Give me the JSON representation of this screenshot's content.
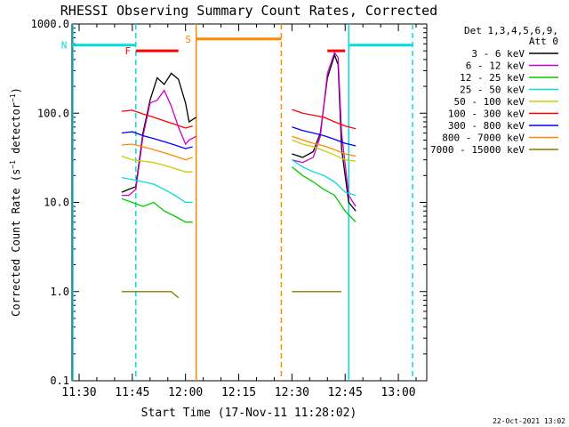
{
  "chart_data": {
    "type": "line",
    "title": "RHESSI Observing Summary Count Rates, Corrected",
    "xlabel": "Start Time (17-Nov-11 11:28:02)",
    "ylabel": "Corrected Count Rate (s⁻¹ detector⁻¹)",
    "ylabel_parts": [
      "Corrected Count Rate (s",
      "−1",
      " detector",
      "−1",
      ")"
    ],
    "y_scale": "log",
    "xlim": [
      "11:28",
      "13:08"
    ],
    "ylim": [
      0.1,
      1000
    ],
    "x_ticks": [
      "11:30",
      "11:45",
      "12:00",
      "12:15",
      "12:30",
      "12:45",
      "13:00"
    ],
    "y_ticks": [
      {
        "value": 0.1,
        "label": "0.1"
      },
      {
        "value": 1,
        "label": "1.0"
      },
      {
        "value": 10,
        "label": "10.0"
      },
      {
        "value": 100,
        "label": "100.0"
      },
      {
        "value": 1000,
        "label": "1000.0"
      }
    ],
    "legend_header": [
      "Det 1,3,4,5,6,9,",
      "Att 0"
    ],
    "legend_position": "right",
    "series": [
      {
        "name": "3 - 6 keV",
        "color": "#000000",
        "segments": [
          [
            [
              "11:42",
              13
            ],
            [
              "11:44",
              14
            ],
            [
              "11:46",
              15
            ],
            [
              "11:48",
              60
            ],
            [
              "11:50",
              140
            ],
            [
              "11:52",
              250
            ],
            [
              "11:54",
              210
            ],
            [
              "11:56",
              280
            ],
            [
              "11:58",
              240
            ],
            [
              "12:00",
              130
            ],
            [
              "12:01",
              80
            ],
            [
              "12:03",
              90
            ]
          ],
          [
            [
              "12:30",
              35
            ],
            [
              "12:33",
              32
            ],
            [
              "12:36",
              37
            ],
            [
              "12:38",
              60
            ],
            [
              "12:40",
              250
            ],
            [
              "12:42",
              450
            ],
            [
              "12:43",
              350
            ],
            [
              "12:44",
              40
            ],
            [
              "12:46",
              10
            ],
            [
              "12:48",
              8
            ]
          ]
        ]
      },
      {
        "name": "6 - 12 keV",
        "color": "#cc00cc",
        "segments": [
          [
            [
              "11:42",
              12
            ],
            [
              "11:44",
              12
            ],
            [
              "11:46",
              14
            ],
            [
              "11:48",
              55
            ],
            [
              "11:50",
              130
            ],
            [
              "11:52",
              140
            ],
            [
              "11:54",
              180
            ],
            [
              "11:56",
              120
            ],
            [
              "11:58",
              70
            ],
            [
              "12:00",
              45
            ],
            [
              "12:01",
              50
            ],
            [
              "12:03",
              55
            ]
          ],
          [
            [
              "12:30",
              30
            ],
            [
              "12:33",
              28
            ],
            [
              "12:36",
              32
            ],
            [
              "12:38",
              55
            ],
            [
              "12:40",
              280
            ],
            [
              "12:42",
              480
            ],
            [
              "12:43",
              420
            ],
            [
              "12:44",
              60
            ],
            [
              "12:46",
              12
            ],
            [
              "12:48",
              9
            ]
          ]
        ]
      },
      {
        "name": "12 - 25 keV",
        "color": "#00cc00",
        "segments": [
          [
            [
              "11:42",
              11
            ],
            [
              "11:45",
              10
            ],
            [
              "11:48",
              9
            ],
            [
              "11:51",
              10
            ],
            [
              "11:54",
              8
            ],
            [
              "11:57",
              7
            ],
            [
              "12:00",
              6
            ],
            [
              "12:02",
              6
            ]
          ],
          [
            [
              "12:30",
              25
            ],
            [
              "12:33",
              20
            ],
            [
              "12:36",
              17
            ],
            [
              "12:39",
              14
            ],
            [
              "12:42",
              12
            ],
            [
              "12:45",
              8
            ],
            [
              "12:48",
              6
            ]
          ]
        ]
      },
      {
        "name": "25 - 50 keV",
        "color": "#00dddd",
        "segments": [
          [
            [
              "11:42",
              19
            ],
            [
              "11:45",
              18
            ],
            [
              "11:48",
              17
            ],
            [
              "11:51",
              16
            ],
            [
              "11:54",
              14
            ],
            [
              "11:57",
              12
            ],
            [
              "12:00",
              10
            ],
            [
              "12:02",
              10
            ]
          ],
          [
            [
              "12:30",
              30
            ],
            [
              "12:33",
              25
            ],
            [
              "12:36",
              22
            ],
            [
              "12:39",
              20
            ],
            [
              "12:42",
              17
            ],
            [
              "12:45",
              13
            ],
            [
              "12:48",
              12
            ]
          ]
        ]
      },
      {
        "name": "50 - 100 keV",
        "color": "#cccc00",
        "segments": [
          [
            [
              "11:42",
              33
            ],
            [
              "11:45",
              30
            ],
            [
              "11:48",
              29
            ],
            [
              "11:51",
              28
            ],
            [
              "11:54",
              26
            ],
            [
              "11:57",
              24
            ],
            [
              "12:00",
              22
            ],
            [
              "12:02",
              22
            ]
          ],
          [
            [
              "12:30",
              50
            ],
            [
              "12:33",
              45
            ],
            [
              "12:36",
              42
            ],
            [
              "12:39",
              38
            ],
            [
              "12:42",
              34
            ],
            [
              "12:45",
              30
            ],
            [
              "12:48",
              29
            ]
          ]
        ]
      },
      {
        "name": "100 - 300 keV",
        "color": "#ff0000",
        "segments": [
          [
            [
              "11:42",
              105
            ],
            [
              "11:45",
              108
            ],
            [
              "11:48",
              98
            ],
            [
              "11:51",
              90
            ],
            [
              "11:54",
              82
            ],
            [
              "11:57",
              75
            ],
            [
              "12:00",
              68
            ],
            [
              "12:02",
              72
            ]
          ],
          [
            [
              "12:30",
              110
            ],
            [
              "12:33",
              100
            ],
            [
              "12:36",
              95
            ],
            [
              "12:39",
              90
            ],
            [
              "12:42",
              80
            ],
            [
              "12:45",
              72
            ],
            [
              "12:48",
              67
            ]
          ]
        ]
      },
      {
        "name": "300 - 800 keV",
        "color": "#0000ff",
        "segments": [
          [
            [
              "11:42",
              60
            ],
            [
              "11:45",
              62
            ],
            [
              "11:48",
              56
            ],
            [
              "11:51",
              52
            ],
            [
              "11:54",
              48
            ],
            [
              "11:57",
              44
            ],
            [
              "12:00",
              40
            ],
            [
              "12:02",
              42
            ]
          ],
          [
            [
              "12:30",
              70
            ],
            [
              "12:33",
              64
            ],
            [
              "12:36",
              60
            ],
            [
              "12:39",
              56
            ],
            [
              "12:42",
              51
            ],
            [
              "12:45",
              46
            ],
            [
              "12:48",
              43
            ]
          ]
        ]
      },
      {
        "name": "800 - 7000 keV",
        "color": "#ff8800",
        "segments": [
          [
            [
              "11:42",
              44
            ],
            [
              "11:45",
              45
            ],
            [
              "11:48",
              42
            ],
            [
              "11:51",
              39
            ],
            [
              "11:54",
              36
            ],
            [
              "11:57",
              33
            ],
            [
              "12:00",
              30
            ],
            [
              "12:02",
              32
            ]
          ],
          [
            [
              "12:30",
              55
            ],
            [
              "12:33",
              50
            ],
            [
              "12:36",
              46
            ],
            [
              "12:39",
              43
            ],
            [
              "12:42",
              39
            ],
            [
              "12:45",
              35
            ],
            [
              "12:48",
              33
            ]
          ]
        ]
      },
      {
        "name": "7000 - 15000 keV",
        "color": "#808000",
        "segments": [
          [
            [
              "11:42",
              1
            ],
            [
              "11:45",
              1
            ],
            [
              "11:48",
              1
            ],
            [
              "11:51",
              1
            ],
            [
              "11:54",
              1
            ],
            [
              "11:56",
              1
            ],
            [
              "11:58",
              0.85
            ]
          ],
          [
            [
              "12:30",
              1
            ],
            [
              "12:34",
              1
            ],
            [
              "12:38",
              1
            ],
            [
              "12:42",
              1
            ],
            [
              "12:44",
              1
            ]
          ]
        ]
      }
    ],
    "flags": [
      {
        "label": "F",
        "color": "#ff0000",
        "level": 500,
        "intervals": [
          [
            "11:46",
            "11:58"
          ],
          [
            "12:40",
            "12:45"
          ]
        ]
      },
      {
        "label": "N",
        "color": "#00dddd",
        "level": 580,
        "intervals": [
          [
            "11:28",
            "11:46"
          ],
          [
            "12:46",
            "13:04"
          ]
        ]
      },
      {
        "label": "S",
        "color": "#ff8800",
        "level": 680,
        "intervals": [
          [
            "12:03",
            "12:27"
          ]
        ]
      }
    ],
    "orbit_marks": [
      {
        "time": "11:46",
        "color": "#00dddd",
        "style": "dashed"
      },
      {
        "time": "12:03",
        "color": "#ff8800",
        "style": "solid"
      },
      {
        "time": "12:27",
        "color": "#ff8800",
        "style": "dashed"
      },
      {
        "time": "12:46",
        "color": "#00dddd",
        "style": "solid"
      },
      {
        "time": "13:04",
        "color": "#00dddd",
        "style": "dashed"
      },
      {
        "time": "11:28",
        "color": "#00dddd",
        "style": "solid"
      }
    ],
    "footer_date": "22-Oct-2021 13:02"
  }
}
